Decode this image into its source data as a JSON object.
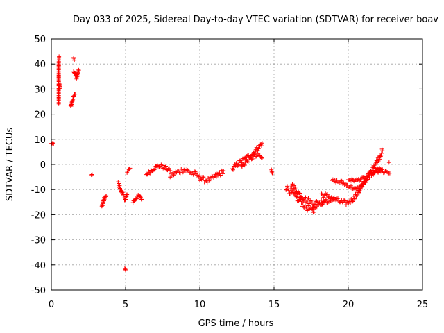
{
  "chart_data": {
    "type": "scatter",
    "title": "Day 033 of 2025, Sidereal Day-to-day VTEC variation (SDTVAR) for receiver boav",
    "xlabel": "GPS time / hours",
    "ylabel": "SDTVAR / TECUs",
    "xlim": [
      0,
      25
    ],
    "ylim": [
      -50,
      50
    ],
    "xticks": [
      0,
      5,
      10,
      15,
      20,
      25
    ],
    "yticks": [
      -50,
      -40,
      -30,
      -20,
      -10,
      0,
      10,
      20,
      30,
      40,
      50
    ],
    "grid": true,
    "marker": "+",
    "color": "#ff0000",
    "segments": [
      {
        "points": [
          [
            0.0,
            8.3
          ],
          [
            0.1,
            8.5
          ],
          [
            0.15,
            8.2
          ]
        ],
        "spread": 0.3
      },
      {
        "points": [
          [
            0.5,
            24.0
          ],
          [
            0.5,
            28.0
          ],
          [
            0.5,
            32.0
          ],
          [
            0.5,
            36.0
          ],
          [
            0.5,
            40.0
          ],
          [
            0.52,
            43.0
          ]
        ],
        "spread": 0.5
      },
      {
        "points": [
          [
            0.55,
            30.0
          ],
          [
            0.6,
            32.0
          ]
        ],
        "spread": 1.0
      },
      {
        "points": [
          [
            1.3,
            23.0
          ],
          [
            1.4,
            25.0
          ],
          [
            1.5,
            27.0
          ],
          [
            1.6,
            28.0
          ]
        ],
        "spread": 1.0
      },
      {
        "points": [
          [
            1.5,
            42.5
          ],
          [
            1.55,
            41.5
          ]
        ],
        "spread": 0.5
      },
      {
        "points": [
          [
            1.5,
            37.0
          ],
          [
            1.6,
            36.0
          ],
          [
            1.7,
            34.5
          ],
          [
            1.8,
            36.5
          ],
          [
            1.85,
            37.5
          ]
        ],
        "spread": 1.5
      },
      {
        "points": [
          [
            2.7,
            -4.2
          ],
          [
            2.75,
            -4.0
          ]
        ],
        "spread": 0.3
      },
      {
        "points": [
          [
            3.4,
            -17.0
          ],
          [
            3.5,
            -15.0
          ],
          [
            3.6,
            -13.0
          ],
          [
            3.7,
            -12.5
          ]
        ],
        "spread": 1.2
      },
      {
        "points": [
          [
            4.5,
            -7.5
          ],
          [
            4.6,
            -9.0
          ],
          [
            4.8,
            -12.0
          ],
          [
            5.0,
            -14.0
          ],
          [
            5.1,
            -12.0
          ]
        ],
        "spread": 1.8
      },
      {
        "points": [
          [
            4.95,
            -41.5
          ],
          [
            5.0,
            -42.0
          ]
        ],
        "spread": 0.4
      },
      {
        "points": [
          [
            5.1,
            -3.0
          ],
          [
            5.3,
            -1.5
          ]
        ],
        "spread": 0.8
      },
      {
        "points": [
          [
            5.5,
            -15.0
          ],
          [
            5.7,
            -13.5
          ],
          [
            5.9,
            -12.5
          ],
          [
            6.1,
            -14.0
          ]
        ],
        "spread": 1.2
      },
      {
        "points": [
          [
            6.4,
            -4.0
          ],
          [
            6.8,
            -2.0
          ],
          [
            7.2,
            -0.5
          ],
          [
            7.6,
            -1.0
          ],
          [
            8.0,
            -2.5
          ]
        ],
        "spread": 1.5
      },
      {
        "points": [
          [
            8.0,
            -4.5
          ],
          [
            8.5,
            -3.0
          ],
          [
            9.0,
            -2.0
          ],
          [
            9.5,
            -3.5
          ],
          [
            10.0,
            -4.5
          ]
        ],
        "spread": 2.2
      },
      {
        "points": [
          [
            10.0,
            -5.5
          ],
          [
            10.5,
            -6.5
          ],
          [
            11.0,
            -5.0
          ],
          [
            11.5,
            -3.0
          ],
          [
            11.6,
            -2.5
          ]
        ],
        "spread": 2.0
      },
      {
        "points": [
          [
            12.2,
            -2.0
          ],
          [
            12.5,
            0.0
          ],
          [
            13.0,
            2.0
          ],
          [
            13.5,
            4.0
          ],
          [
            14.0,
            7.0
          ],
          [
            14.2,
            8.5
          ]
        ],
        "spread": 2.0
      },
      {
        "points": [
          [
            12.8,
            -1.0
          ],
          [
            13.2,
            1.5
          ],
          [
            13.6,
            3.0
          ],
          [
            14.0,
            3.5
          ],
          [
            14.2,
            2.5
          ]
        ],
        "spread": 1.8
      },
      {
        "points": [
          [
            14.8,
            -2.0
          ],
          [
            14.9,
            -3.5
          ]
        ],
        "spread": 1.0
      },
      {
        "points": [
          [
            15.8,
            -9.0
          ],
          [
            16.3,
            -12.0
          ],
          [
            16.8,
            -15.0
          ],
          [
            17.3,
            -17.5
          ],
          [
            17.7,
            -19.0
          ]
        ],
        "spread": 2.5
      },
      {
        "points": [
          [
            16.2,
            -8.0
          ],
          [
            16.6,
            -11.0
          ],
          [
            17.0,
            -13.5
          ],
          [
            17.5,
            -15.0
          ],
          [
            18.0,
            -15.5
          ],
          [
            18.5,
            -14.0
          ]
        ],
        "spread": 2.2
      },
      {
        "points": [
          [
            17.6,
            -17.0
          ],
          [
            18.0,
            -16.0
          ],
          [
            18.5,
            -15.0
          ],
          [
            19.0,
            -14.0
          ]
        ],
        "spread": 1.5
      },
      {
        "points": [
          [
            18.2,
            -12.0
          ],
          [
            18.8,
            -13.0
          ],
          [
            19.3,
            -14.5
          ],
          [
            19.8,
            -15.5
          ],
          [
            20.2,
            -14.5
          ],
          [
            20.7,
            -11.0
          ],
          [
            21.2,
            -6.0
          ],
          [
            21.7,
            -1.0
          ],
          [
            22.1,
            3.0
          ],
          [
            22.3,
            5.5
          ]
        ],
        "spread": 2.0
      },
      {
        "points": [
          [
            18.9,
            -6.5
          ],
          [
            19.5,
            -7.0
          ],
          [
            20.0,
            -8.5
          ],
          [
            20.5,
            -10.0
          ],
          [
            21.0,
            -8.0
          ],
          [
            21.5,
            -4.0
          ],
          [
            22.0,
            -1.5
          ],
          [
            22.3,
            -2.0
          ]
        ],
        "spread": 1.5
      },
      {
        "points": [
          [
            20.0,
            -6.0
          ],
          [
            20.5,
            -6.5
          ],
          [
            21.0,
            -5.5
          ],
          [
            21.5,
            -4.0
          ],
          [
            22.0,
            -3.0
          ],
          [
            22.5,
            -3.0
          ],
          [
            22.8,
            -3.5
          ]
        ],
        "spread": 1.2
      },
      {
        "points": [
          [
            22.75,
            0.8
          ]
        ],
        "spread": 0.2
      }
    ]
  }
}
